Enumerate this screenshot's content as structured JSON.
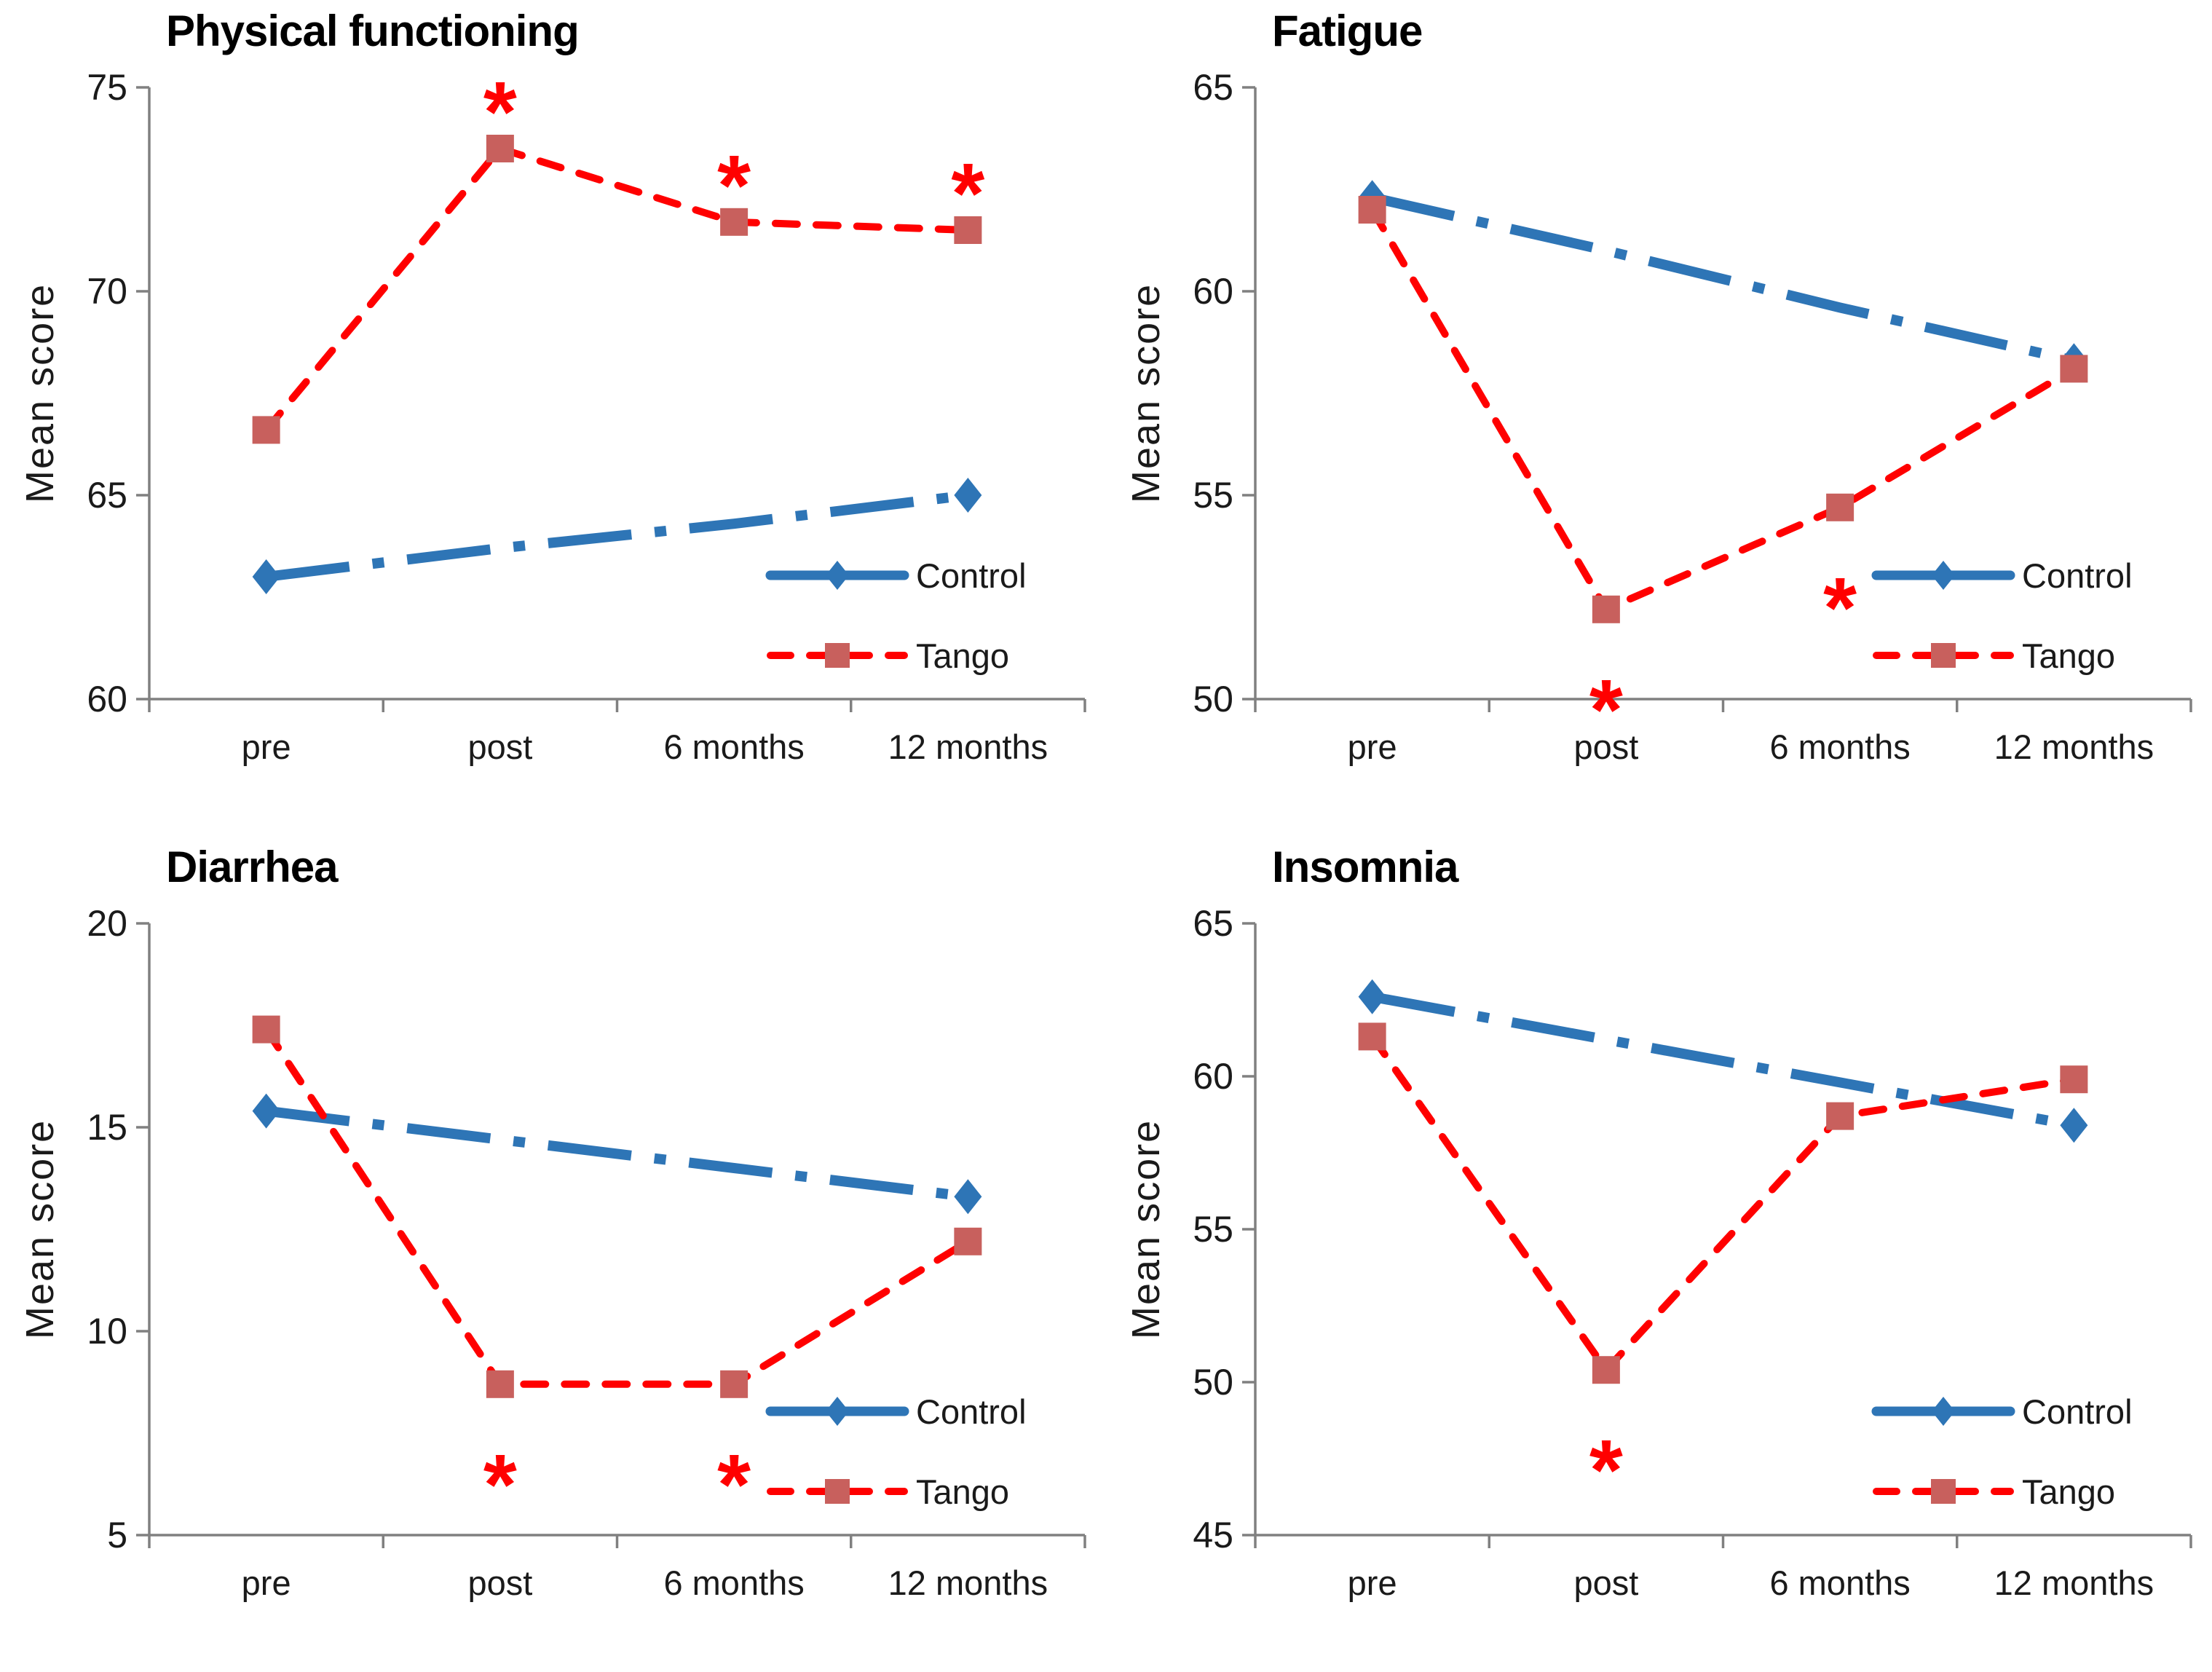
{
  "figure": {
    "background": "#ffffff",
    "colors": {
      "axis": "#808080",
      "tick_label": "#1a1a1a",
      "title": "#000000",
      "control_blue": "#2E75B6",
      "tango_red": "#FF0000",
      "tango_marker": "#C8605D",
      "asterisk_red": "#FF0000"
    },
    "series_styles": {
      "Control": {
        "color": "#2E75B6",
        "marker": "diamond",
        "marker_color": "#2E75B6",
        "line_style": "dash-dot",
        "line_width": 14
      },
      "Tango": {
        "color": "#FF0000",
        "marker": "square",
        "marker_color": "#C8605D",
        "line_style": "dashed",
        "line_width": 10
      }
    },
    "legend": {
      "items": [
        {
          "label": "Control"
        },
        {
          "label": "Tango"
        }
      ]
    }
  },
  "chart_data": [
    {
      "type": "line",
      "title": "Physical functioning",
      "ylabel": "Mean score",
      "xlabel": "",
      "categories": [
        "pre",
        "post",
        "6 months",
        "12 months"
      ],
      "ylim": [
        60,
        75
      ],
      "yticks": [
        60,
        65,
        70,
        75
      ],
      "grid": false,
      "legend_position": "lower-right",
      "series": [
        {
          "name": "Control",
          "values": [
            63.0,
            63.7,
            64.3,
            65.0
          ],
          "marker_points": [
            0,
            3
          ],
          "significance": []
        },
        {
          "name": "Tango",
          "values": [
            66.6,
            73.5,
            71.7,
            71.5
          ],
          "marker_points": [
            0,
            1,
            2,
            3
          ],
          "significance": [
            {
              "category": "post",
              "position": "above"
            },
            {
              "category": "6 months",
              "position": "above"
            },
            {
              "category": "12 months",
              "position": "above"
            }
          ]
        }
      ]
    },
    {
      "type": "line",
      "title": "Fatigue",
      "ylabel": "Mean score",
      "xlabel": "",
      "categories": [
        "pre",
        "post",
        "6 months",
        "12 months"
      ],
      "ylim": [
        50,
        65
      ],
      "yticks": [
        50,
        55,
        60,
        65
      ],
      "grid": false,
      "legend_position": "lower-right",
      "series": [
        {
          "name": "Control",
          "values": [
            62.3,
            61.0,
            59.6,
            58.3
          ],
          "marker_points": [
            0,
            3
          ],
          "significance": []
        },
        {
          "name": "Tango",
          "values": [
            62.0,
            52.2,
            54.7,
            58.1
          ],
          "marker_points": [
            0,
            1,
            2,
            3
          ],
          "significance": [
            {
              "category": "post",
              "position": "below"
            },
            {
              "category": "6 months",
              "position": "below"
            }
          ]
        }
      ]
    },
    {
      "type": "line",
      "title": "Diarrhea",
      "ylabel": "Mean score",
      "xlabel": "",
      "categories": [
        "pre",
        "post",
        "6 months",
        "12 months"
      ],
      "ylim": [
        5,
        20
      ],
      "yticks": [
        5,
        10,
        15,
        20
      ],
      "grid": false,
      "legend_position": "lower-right",
      "series": [
        {
          "name": "Control",
          "values": [
            15.4,
            14.7,
            14.0,
            13.3
          ],
          "marker_points": [
            0,
            3
          ],
          "significance": []
        },
        {
          "name": "Tango",
          "values": [
            17.4,
            8.7,
            8.7,
            12.2
          ],
          "marker_points": [
            0,
            1,
            2,
            3
          ],
          "significance": [
            {
              "category": "post",
              "position": "below"
            },
            {
              "category": "6 months",
              "position": "below"
            }
          ]
        }
      ]
    },
    {
      "type": "line",
      "title": "Insomnia",
      "ylabel": "Mean score",
      "xlabel": "",
      "categories": [
        "pre",
        "post",
        "6 months",
        "12 months"
      ],
      "ylim": [
        45,
        65
      ],
      "yticks": [
        45,
        50,
        55,
        60,
        65
      ],
      "grid": false,
      "legend_position": "lower-right",
      "series": [
        {
          "name": "Control",
          "values": [
            62.6,
            61.2,
            59.8,
            58.4
          ],
          "marker_points": [
            0,
            3
          ],
          "significance": []
        },
        {
          "name": "Tango",
          "values": [
            61.3,
            50.4,
            58.7,
            59.9
          ],
          "marker_points": [
            0,
            1,
            2,
            3
          ],
          "significance": [
            {
              "category": "post",
              "position": "below"
            }
          ]
        }
      ]
    }
  ]
}
